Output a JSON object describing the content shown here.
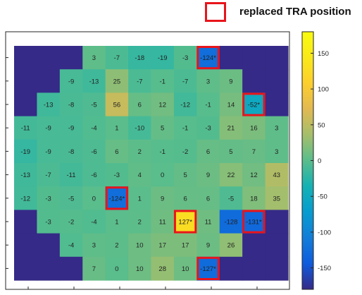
{
  "legend": {
    "label": "replaced TRA position",
    "box_color": "#e8141b"
  },
  "chart_data": {
    "type": "heatmap",
    "title": "",
    "xlabel": "",
    "ylabel": "",
    "colormap": "parula",
    "clim": [
      -180,
      180
    ],
    "colorbar_ticks": [
      150,
      100,
      50,
      0,
      -50,
      -100,
      -150
    ],
    "background_value": -180,
    "rows": [
      [
        null,
        null,
        null,
        3,
        -7,
        -18,
        -19,
        -3,
        -124,
        null,
        null,
        null
      ],
      [
        null,
        null,
        -9,
        -13,
        25,
        -7,
        -1,
        -7,
        3,
        9,
        null,
        null
      ],
      [
        null,
        -13,
        -8,
        -5,
        56,
        6,
        12,
        -12,
        -1,
        14,
        -52,
        null
      ],
      [
        -11,
        -9,
        -9,
        -4,
        1,
        -10,
        5,
        -1,
        -3,
        21,
        16,
        3
      ],
      [
        -19,
        -9,
        -8,
        -6,
        6,
        2,
        -1,
        -2,
        6,
        5,
        7,
        3
      ],
      [
        -13,
        -7,
        -11,
        -6,
        -3,
        4,
        0,
        5,
        9,
        22,
        12,
        43
      ],
      [
        -12,
        -3,
        -5,
        0,
        -124,
        1,
        9,
        6,
        6,
        -5,
        18,
        35
      ],
      [
        null,
        -3,
        -2,
        -4,
        1,
        2,
        11,
        127,
        11,
        -128,
        -131,
        null
      ],
      [
        null,
        null,
        -4,
        3,
        2,
        10,
        17,
        17,
        9,
        26,
        null,
        null
      ],
      [
        null,
        null,
        null,
        7,
        0,
        10,
        28,
        10,
        -127,
        null,
        null,
        null
      ]
    ],
    "labels": [
      [
        "",
        "",
        "",
        "3",
        "-7",
        "-18",
        "-19",
        "-3",
        "-124*",
        "",
        "",
        ""
      ],
      [
        "",
        "",
        "-9",
        "-13",
        "25",
        "-7",
        "-1",
        "-7",
        "3",
        "9",
        "",
        ""
      ],
      [
        "",
        "-13",
        "-8",
        "-5",
        "56",
        "6",
        "12",
        "-12",
        "-1",
        "14",
        "-52*",
        ""
      ],
      [
        "-11",
        "-9",
        "-9",
        "-4",
        "1",
        "-10",
        "5",
        "-1",
        "-3",
        "21",
        "16",
        "3"
      ],
      [
        "-19",
        "-9",
        "-8",
        "-6",
        "6",
        "2",
        "-1",
        "-2",
        "6",
        "5",
        "7",
        "3"
      ],
      [
        "-13",
        "-7",
        "-11",
        "-6",
        "-3",
        "4",
        "0",
        "5",
        "9",
        "22",
        "12",
        "43"
      ],
      [
        "-12",
        "-3",
        "-5",
        "0",
        "-124*",
        "1",
        "9",
        "6",
        "6",
        "-5",
        "18",
        "35"
      ],
      [
        "",
        "-3",
        "-2",
        "-4",
        "1",
        "2",
        "11",
        "127*",
        "11",
        "-128",
        "-131*",
        ""
      ],
      [
        "",
        "",
        "-4",
        "3",
        "2",
        "10",
        "17",
        "17",
        "9",
        "26",
        "",
        ""
      ],
      [
        "",
        "",
        "",
        "7",
        "0",
        "10",
        "28",
        "10",
        "-127*",
        "",
        "",
        ""
      ]
    ],
    "replaced": [
      [
        0,
        8
      ],
      [
        2,
        10
      ],
      [
        6,
        4
      ],
      [
        7,
        7
      ],
      [
        7,
        10
      ],
      [
        9,
        8
      ]
    ],
    "grid": false
  }
}
